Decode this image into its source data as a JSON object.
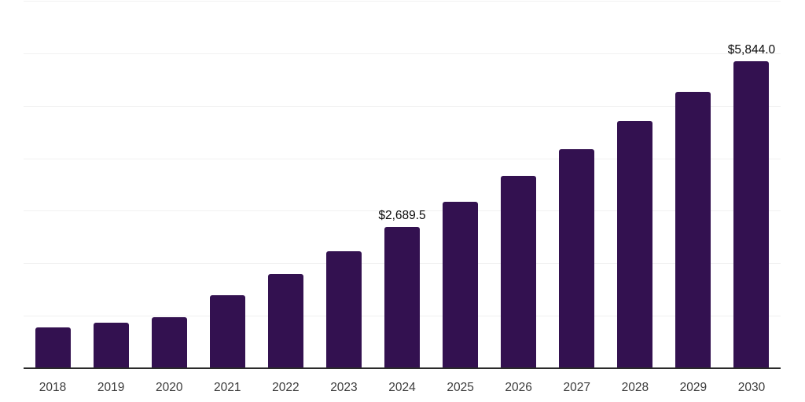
{
  "chart_data": {
    "type": "bar",
    "title": "",
    "xlabel": "",
    "ylabel": "",
    "categories": [
      "2018",
      "2019",
      "2020",
      "2021",
      "2022",
      "2023",
      "2024",
      "2025",
      "2026",
      "2027",
      "2028",
      "2029",
      "2030"
    ],
    "values": [
      780,
      870,
      975,
      1390,
      1795,
      2225,
      2689.5,
      3165,
      3660,
      4175,
      4715,
      5265,
      5844
    ],
    "bar_labels": [
      "",
      "",
      "",
      "",
      "",
      "",
      "$2,689.5",
      "",
      "",
      "",
      "",
      "",
      "$5,844.0"
    ],
    "ylim": [
      0,
      7000
    ],
    "gridline_step": 1000,
    "grid": "horizontal",
    "y_tick_labels_visible": false,
    "legend_position": "none"
  },
  "colors": {
    "bar": "#331150",
    "gridline": "#f1f1f1",
    "axis": "#2a2a2a",
    "tick_label": "#3c3c3c",
    "data_label": "#0a0a0a",
    "background": "#ffffff"
  }
}
